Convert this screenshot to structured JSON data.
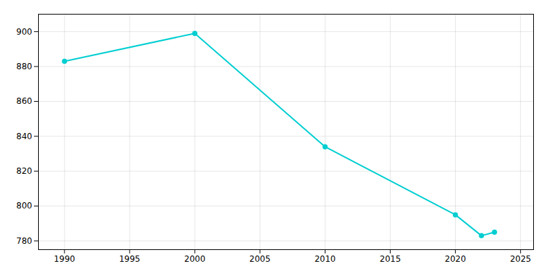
{
  "chart_data": {
    "type": "line",
    "x": [
      1990,
      2000,
      2010,
      2020,
      2022,
      2023
    ],
    "values": [
      883,
      899,
      834,
      795,
      783,
      785
    ],
    "color": "#00CED1",
    "marker": "circle",
    "xlim": [
      1988,
      2026
    ],
    "ylim": [
      775,
      910
    ],
    "xticks": [
      1990,
      1995,
      2000,
      2005,
      2010,
      2015,
      2020,
      2025
    ],
    "yticks": [
      780,
      800,
      820,
      840,
      860,
      880,
      900
    ],
    "grid": true
  }
}
